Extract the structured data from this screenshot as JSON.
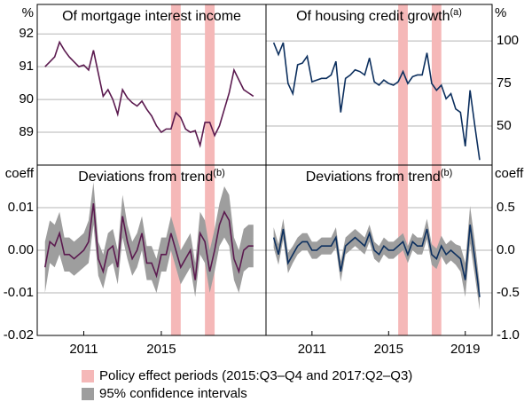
{
  "x": [
    2009,
    2009.25,
    2009.5,
    2009.75,
    2010,
    2010.25,
    2010.5,
    2010.75,
    2011,
    2011.25,
    2011.5,
    2011.75,
    2012,
    2012.25,
    2012.5,
    2012.75,
    2013,
    2013.25,
    2013.5,
    2013.75,
    2014,
    2014.25,
    2014.5,
    2014.75,
    2015,
    2015.25,
    2015.5,
    2015.75,
    2016,
    2016.25,
    2016.5,
    2016.75,
    2017,
    2017.25,
    2017.5,
    2017.75,
    2018,
    2018.25,
    2018.5,
    2018.75,
    2019,
    2019.25,
    2019.5,
    2019.75
  ],
  "xlim": [
    2008.6,
    2020.4
  ],
  "shaded_periods": [
    {
      "start": 2015.5,
      "end": 2016.0
    },
    {
      "start": 2017.25,
      "end": 2017.75
    }
  ],
  "shade_color": "#f5b8b8",
  "legend": [
    {
      "label": "Policy effect periods (2015:Q3–Q4 and 2017:Q2–Q3)",
      "color": "#f5b8b8"
    },
    {
      "label": "95% confidence intervals",
      "color": "#9e9e9e"
    }
  ],
  "chart_data": [
    {
      "type": "line",
      "title": "Of mortgage interest income",
      "unit": "%",
      "yaxis_side": "left",
      "ylim": [
        88,
        92.9
      ],
      "yticks": [
        89,
        90,
        91,
        92
      ],
      "grid": true,
      "series": [
        {
          "color": "#5b1a4f",
          "values": [
            91.0,
            91.15,
            91.3,
            91.75,
            91.5,
            91.3,
            91.15,
            91.0,
            91.05,
            90.9,
            91.5,
            90.8,
            90.1,
            90.3,
            90.0,
            89.55,
            90.3,
            90.05,
            89.9,
            89.8,
            89.95,
            89.7,
            89.5,
            89.2,
            89.0,
            89.1,
            89.1,
            89.6,
            89.45,
            89.1,
            89.0,
            89.05,
            88.6,
            89.3,
            89.3,
            88.9,
            89.2,
            89.7,
            90.2,
            90.9,
            90.6,
            90.3,
            90.2,
            90.1
          ]
        }
      ]
    },
    {
      "type": "line",
      "title": "Of housing credit growth",
      "title_sup": "(a)",
      "unit": "%",
      "yaxis_side": "right",
      "ylim": [
        27,
        121.5
      ],
      "yticks": [
        50,
        75,
        100
      ],
      "grid": true,
      "series": [
        {
          "color": "#0c2f5e",
          "values": [
            99,
            92,
            99,
            75,
            69,
            86,
            87,
            91,
            76,
            77,
            78,
            78,
            80,
            88,
            58,
            78,
            80,
            83,
            82,
            80,
            90,
            76,
            74,
            77,
            75,
            74,
            76,
            82,
            75,
            79,
            80,
            80,
            93,
            75,
            71,
            74,
            66,
            69,
            60,
            58,
            38,
            71,
            50,
            30
          ]
        }
      ]
    },
    {
      "type": "line",
      "title": "Deviations from trend",
      "title_sup": "(b)",
      "unit": "coeff",
      "yaxis_side": "left",
      "ylim": [
        -0.02,
        0.02
      ],
      "yticks": [
        -0.02,
        -0.01,
        {
          "value": 0,
          "label": "0.00"
        },
        0.01
      ],
      "grid": true,
      "xticks": [
        2011,
        2015
      ],
      "series": [
        {
          "color": "#5b1a4f",
          "error_color": "#9e9e9e",
          "values": [
            -0.004,
            0.002,
            0.001,
            0.004,
            -0.001,
            -0.001,
            -0.002,
            -0.001,
            0.0,
            0.002,
            0.011,
            -0.002,
            -0.005,
            0.0,
            0.001,
            -0.004,
            0.008,
            0.002,
            -0.002,
            0.0,
            0.004,
            -0.003,
            -0.003,
            -0.006,
            -0.001,
            -0.001,
            0.004,
            0.0,
            -0.004,
            -0.002,
            0.0,
            -0.007,
            0.004,
            0.002,
            -0.005,
            0.0,
            0.006,
            0.009,
            0.007,
            -0.002,
            -0.005,
            0.0,
            0.001,
            0.001
          ],
          "errors": [
            0.006,
            0.005,
            0.005,
            0.005,
            0.004,
            0.004,
            0.004,
            0.004,
            0.004,
            0.005,
            0.005,
            0.004,
            0.004,
            0.004,
            0.004,
            0.004,
            0.005,
            0.004,
            0.004,
            0.004,
            0.004,
            0.004,
            0.004,
            0.004,
            0.004,
            0.004,
            0.004,
            0.004,
            0.004,
            0.004,
            0.004,
            0.004,
            0.005,
            0.005,
            0.005,
            0.005,
            0.005,
            0.006,
            0.006,
            0.005,
            0.005,
            0.005,
            0.005,
            0.005
          ]
        }
      ]
    },
    {
      "type": "line",
      "title": "Deviations from trend",
      "title_sup": "(b)",
      "unit": "coeff",
      "yaxis_side": "right",
      "ylim": [
        -1.0,
        1.0
      ],
      "yticks": [
        {
          "value": -1,
          "label": "-1.0"
        },
        -0.5,
        {
          "value": 0,
          "label": "0.0"
        },
        0.5
      ],
      "grid": true,
      "xticks": [
        2011,
        2015,
        2019
      ],
      "series": [
        {
          "color": "#0c2f5e",
          "error_color": "#9e9e9e",
          "values": [
            0.15,
            -0.05,
            0.25,
            -0.15,
            -0.05,
            0.05,
            0.1,
            0.1,
            0.0,
            0.0,
            0.05,
            0.05,
            0.05,
            0.15,
            -0.25,
            0.05,
            0.1,
            0.15,
            0.1,
            0.05,
            0.2,
            0.0,
            -0.05,
            0.05,
            0.0,
            0.0,
            0.05,
            0.1,
            -0.05,
            0.1,
            0.05,
            0.05,
            0.25,
            -0.05,
            -0.1,
            0.05,
            -0.05,
            0.0,
            -0.05,
            -0.1,
            -0.35,
            0.3,
            -0.1,
            -0.55
          ],
          "errors": [
            0.12,
            0.12,
            0.12,
            0.12,
            0.1,
            0.1,
            0.1,
            0.1,
            0.1,
            0.1,
            0.1,
            0.1,
            0.1,
            0.12,
            0.12,
            0.1,
            0.1,
            0.1,
            0.1,
            0.1,
            0.1,
            0.1,
            0.1,
            0.1,
            0.1,
            0.1,
            0.1,
            0.1,
            0.1,
            0.1,
            0.1,
            0.1,
            0.12,
            0.12,
            0.12,
            0.12,
            0.12,
            0.12,
            0.12,
            0.15,
            0.2,
            0.22,
            0.2,
            0.15
          ]
        }
      ]
    }
  ]
}
